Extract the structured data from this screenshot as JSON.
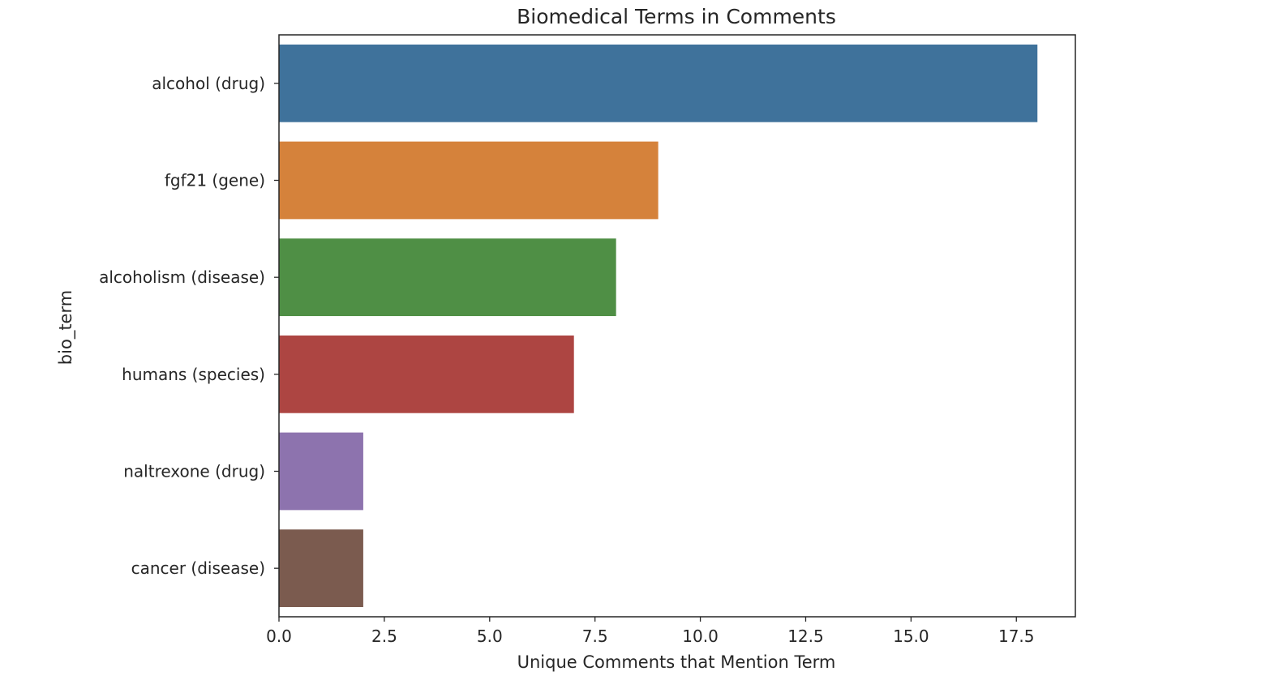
{
  "chart_data": {
    "type": "bar",
    "orientation": "horizontal",
    "title": "Biomedical Terms in Comments",
    "xlabel": "Unique Comments that Mention Term",
    "ylabel": "bio_term",
    "categories": [
      "alcohol (drug)",
      "fgf21 (gene)",
      "alcoholism (disease)",
      "humans (species)",
      "naltrexone (drug)",
      "cancer (disease)"
    ],
    "values": [
      18,
      9,
      8,
      7,
      2,
      2
    ],
    "colors": [
      "#3f729b",
      "#d5823b",
      "#4f8f45",
      "#ad4542",
      "#8d73ae",
      "#7b5b4f"
    ],
    "xlim": [
      0,
      18.9
    ],
    "xticks": [
      0.0,
      2.5,
      5.0,
      7.5,
      10.0,
      12.5,
      15.0,
      17.5
    ],
    "xtick_labels": [
      "0.0",
      "2.5",
      "5.0",
      "7.5",
      "10.0",
      "12.5",
      "15.0",
      "17.5"
    ],
    "grid": false,
    "legend": "none"
  }
}
